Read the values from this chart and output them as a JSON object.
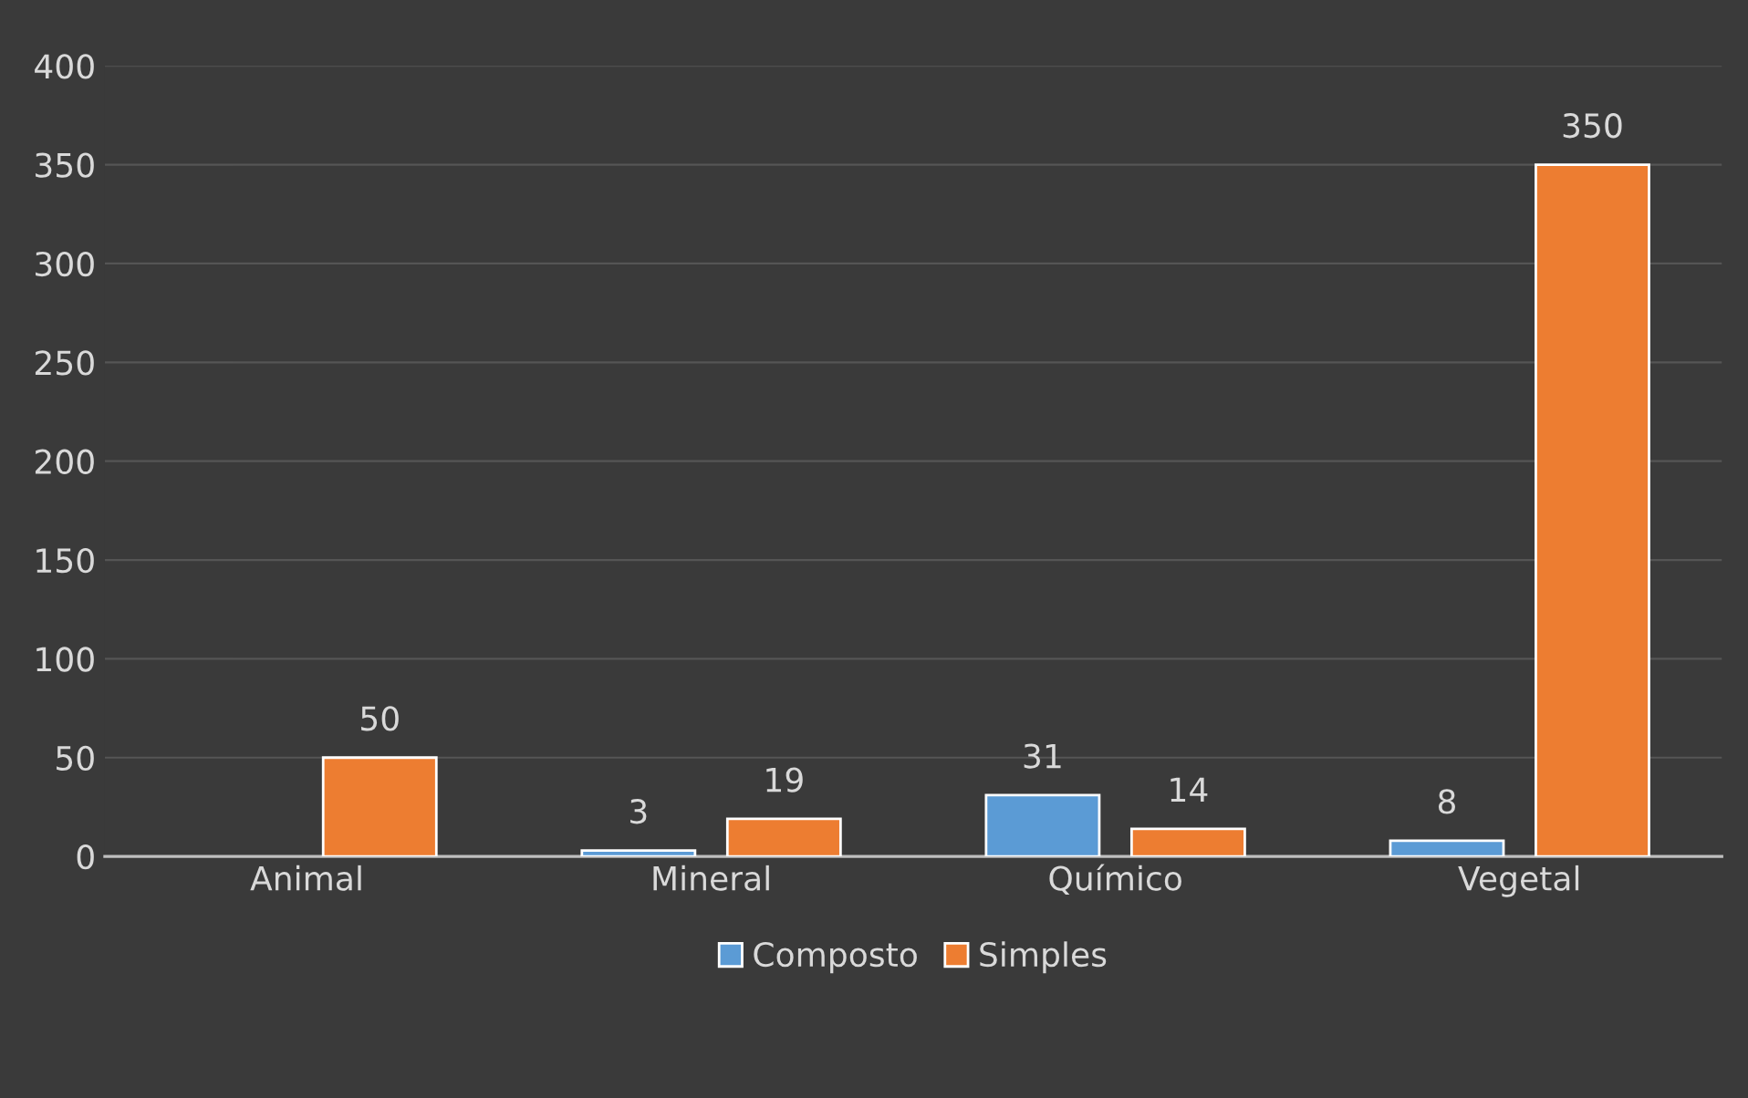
{
  "chart_data": {
    "type": "bar",
    "categories": [
      "Animal",
      "Mineral",
      "Químico",
      "Vegetal"
    ],
    "series": [
      {
        "name": "Composto",
        "color": "#5b9bd5",
        "values": [
          null,
          3,
          31,
          8
        ]
      },
      {
        "name": "Simples",
        "color": "#ed7d31",
        "values": [
          50,
          19,
          14,
          350
        ]
      }
    ],
    "ylim": [
      0,
      400
    ],
    "yticks": [
      0,
      50,
      100,
      150,
      200,
      250,
      300,
      350,
      400
    ],
    "grid": "y",
    "legend": "bottom",
    "data_labels": true
  }
}
